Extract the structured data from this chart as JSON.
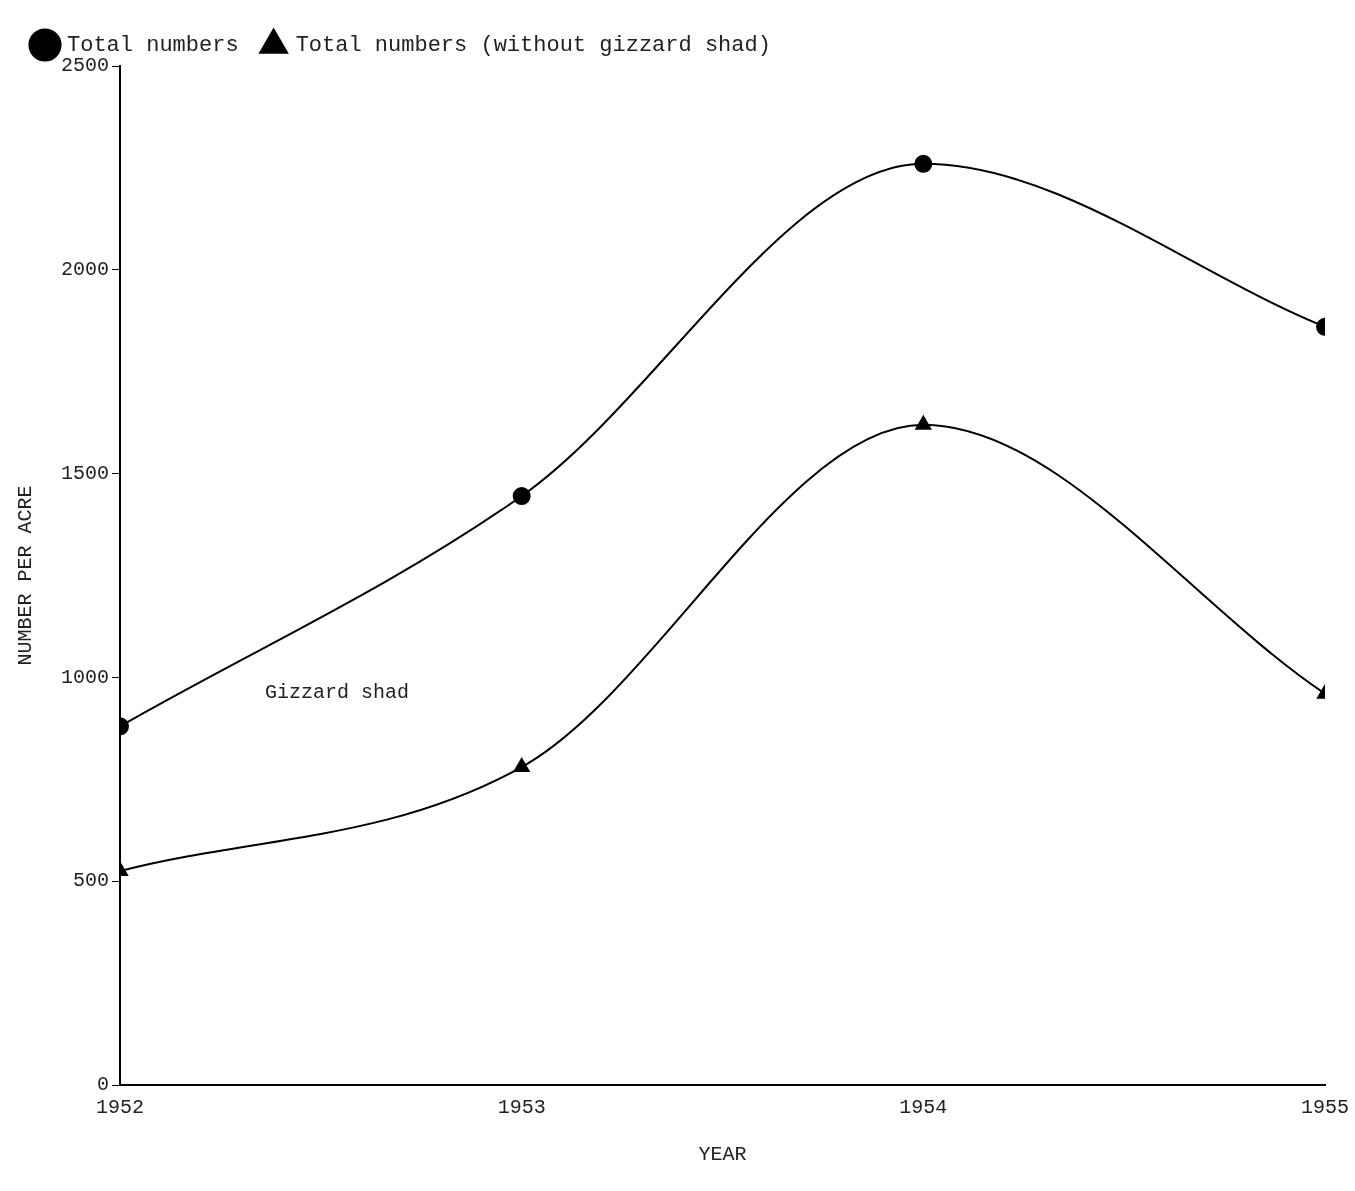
{
  "chart_data": {
    "type": "line",
    "xlabel": "YEAR",
    "ylabel": "NUMBER PER ACRE",
    "x": [
      1952,
      1953,
      1954,
      1955
    ],
    "series": [
      {
        "name": "Total numbers",
        "color": "#000000",
        "marker": "circle",
        "values": [
          880,
          1445,
          2260,
          1860
        ]
      },
      {
        "name": "Total numbers (without gizzard shad)",
        "color": "#000000",
        "marker": "triangle",
        "values": [
          525,
          780,
          1620,
          960
        ]
      }
    ],
    "xlim": [
      1952,
      1955
    ],
    "xticks": [
      1952,
      1953,
      1954,
      1955
    ],
    "ylim": [
      0,
      2500
    ],
    "yticks": [
      0,
      500,
      1000,
      1500,
      2000,
      2500
    ],
    "annotations": [
      "Gizzard shad"
    ],
    "grid": false,
    "legend": "top"
  }
}
